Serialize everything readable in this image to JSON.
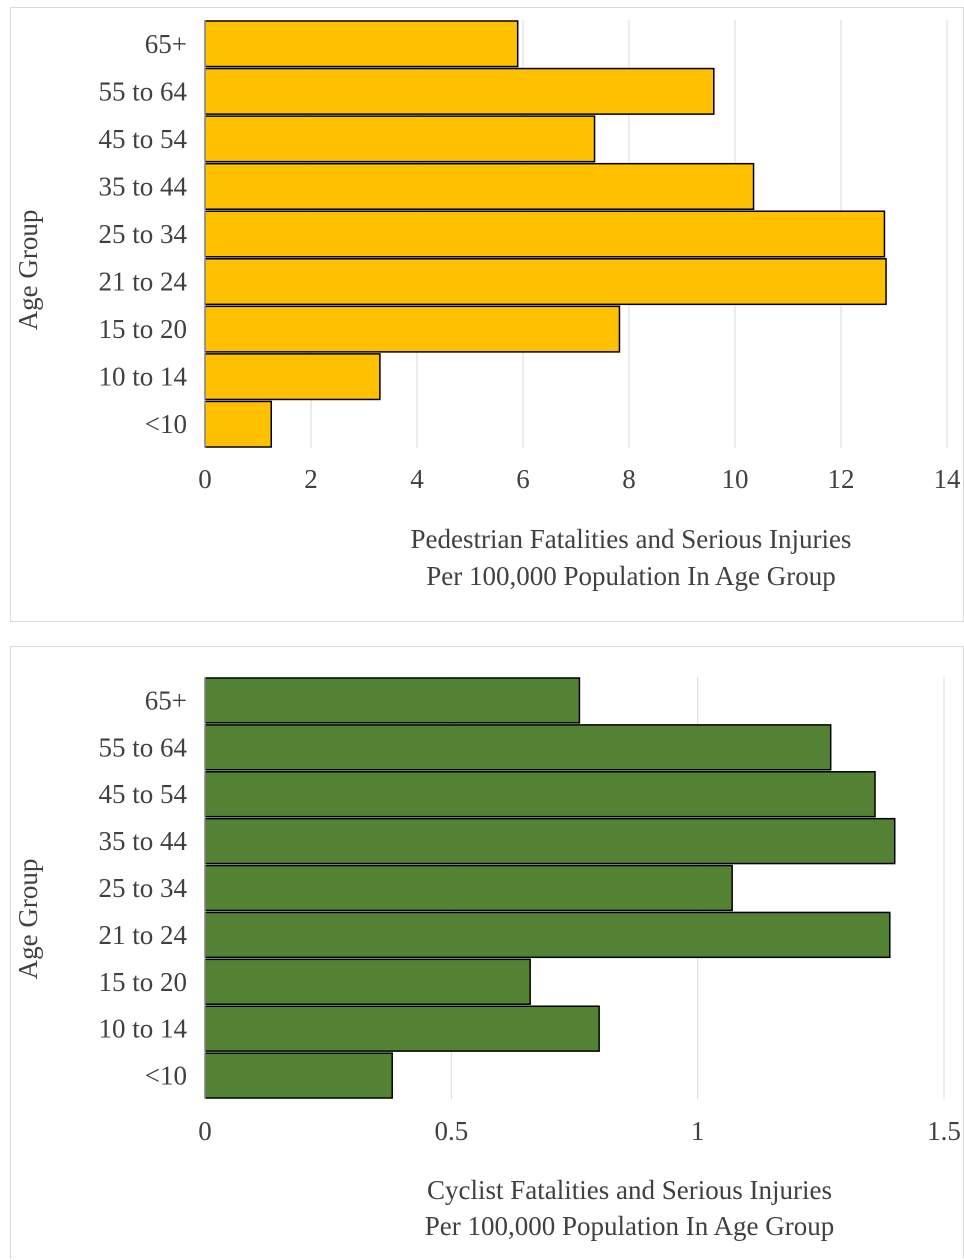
{
  "chart_data": [
    {
      "type": "bar",
      "orientation": "horizontal",
      "categories": [
        "65+",
        "55 to 64",
        "45 to 54",
        "35 to 44",
        "25 to 34",
        "21 to 24",
        "15 to 20",
        "10 to 14",
        "<10"
      ],
      "series": [
        {
          "values": [
            5.9,
            9.6,
            7.35,
            10.35,
            12.82,
            12.85,
            7.82,
            3.3,
            1.25
          ]
        }
      ],
      "xlabel": [
        "Pedestrian Fatalities and Serious Injuries",
        "Per 100,000 Population In Age Group"
      ],
      "ylabel": "Age Group",
      "xlim": [
        0,
        14
      ],
      "xticks": [
        0,
        2,
        4,
        6,
        8,
        10,
        12,
        14
      ],
      "xtick_labels": [
        "0",
        "2",
        "4",
        "6",
        "8",
        "10",
        "12",
        "14"
      ],
      "grid": "vertical",
      "bar_color": "#FFC000"
    },
    {
      "type": "bar",
      "orientation": "horizontal",
      "categories": [
        "65+",
        "55 to 64",
        "45 to 54",
        "35 to 44",
        "25 to 34",
        "21 to 24",
        "15 to 20",
        "10 to 14",
        "<10"
      ],
      "series": [
        {
          "values": [
            0.76,
            1.27,
            1.36,
            1.4,
            1.07,
            1.39,
            0.66,
            0.8,
            0.38
          ]
        }
      ],
      "xlabel": [
        "Cyclist Fatalities and Serious Injuries",
        "Per 100,000 Population In Age Group"
      ],
      "ylabel": "Age Group",
      "xlim": [
        0,
        1.5
      ],
      "xticks": [
        0,
        0.5,
        1,
        1.5
      ],
      "xtick_labels": [
        "0",
        "0.5",
        "1",
        "1.5"
      ],
      "grid": "vertical",
      "bar_color": "#548235"
    }
  ]
}
